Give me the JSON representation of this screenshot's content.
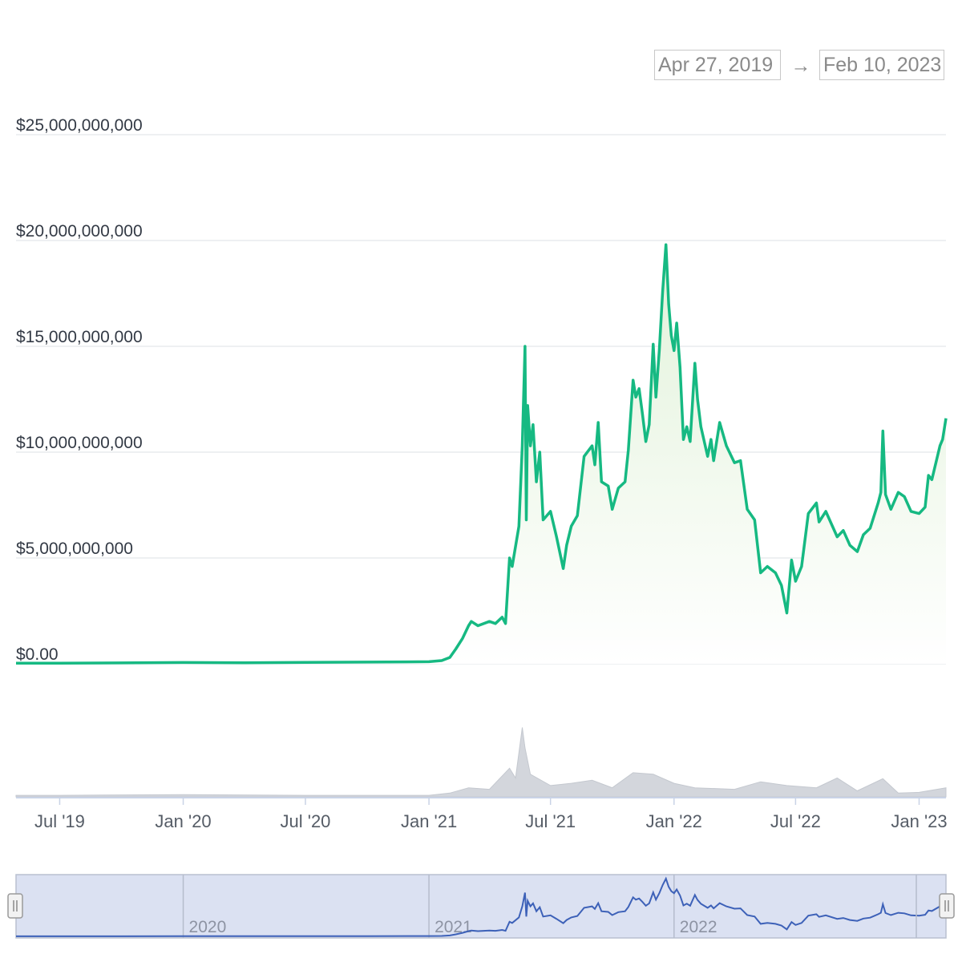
{
  "range": {
    "start": "Apr 27, 2019",
    "separator": "→",
    "end": "Feb 10, 2023"
  },
  "colors": {
    "line": "#16b982",
    "area_top": "#e2f2da",
    "volume": "#d3d6dc",
    "nav_bg": "#dbe1f2",
    "nav_line": "#3d61b8"
  },
  "chart_data": {
    "type": "line",
    "title": "",
    "xlabel": "",
    "ylabel": "",
    "x_range": [
      "2019-04-27",
      "2023-02-10"
    ],
    "ylim": [
      0,
      25000000000
    ],
    "y_ticks": [
      {
        "value": 0,
        "label": "$0.00"
      },
      {
        "value": 5000000000,
        "label": "$5,000,000,000"
      },
      {
        "value": 10000000000,
        "label": "$10,000,000,000"
      },
      {
        "value": 15000000000,
        "label": "$15,000,000,000"
      },
      {
        "value": 20000000000,
        "label": "$20,000,000,000"
      },
      {
        "value": 25000000000,
        "label": "$25,000,000,000"
      }
    ],
    "x_ticks": [
      {
        "date": "2019-07-01",
        "label": "Jul '19"
      },
      {
        "date": "2020-01-01",
        "label": "Jan '20"
      },
      {
        "date": "2020-07-01",
        "label": "Jul '20"
      },
      {
        "date": "2021-01-01",
        "label": "Jan '21"
      },
      {
        "date": "2021-07-01",
        "label": "Jul '21"
      },
      {
        "date": "2022-01-01",
        "label": "Jan '22"
      },
      {
        "date": "2022-07-01",
        "label": "Jul '22"
      },
      {
        "date": "2023-01-01",
        "label": "Jan '23"
      }
    ],
    "grid": true,
    "series": [
      {
        "points": [
          [
            "2019-04-27",
            30000000
          ],
          [
            "2019-07-01",
            30000000
          ],
          [
            "2019-10-01",
            40000000
          ],
          [
            "2020-01-01",
            60000000
          ],
          [
            "2020-04-01",
            50000000
          ],
          [
            "2020-07-01",
            70000000
          ],
          [
            "2020-10-01",
            80000000
          ],
          [
            "2021-01-01",
            100000000
          ],
          [
            "2021-01-20",
            150000000
          ],
          [
            "2021-02-01",
            300000000
          ],
          [
            "2021-02-10",
            700000000
          ],
          [
            "2021-02-20",
            1200000000
          ],
          [
            "2021-03-01",
            1800000000
          ],
          [
            "2021-03-05",
            2000000000
          ],
          [
            "2021-03-15",
            1800000000
          ],
          [
            "2021-04-01",
            2000000000
          ],
          [
            "2021-04-10",
            1900000000
          ],
          [
            "2021-04-20",
            2200000000
          ],
          [
            "2021-04-25",
            1900000000
          ],
          [
            "2021-05-01",
            5000000000
          ],
          [
            "2021-05-05",
            4600000000
          ],
          [
            "2021-05-15",
            6500000000
          ],
          [
            "2021-05-20",
            10300000000
          ],
          [
            "2021-05-24",
            15000000000
          ],
          [
            "2021-05-26",
            6800000000
          ],
          [
            "2021-05-28",
            12200000000
          ],
          [
            "2021-06-01",
            10300000000
          ],
          [
            "2021-06-05",
            11300000000
          ],
          [
            "2021-06-10",
            8600000000
          ],
          [
            "2021-06-15",
            10000000000
          ],
          [
            "2021-06-20",
            6800000000
          ],
          [
            "2021-07-01",
            7200000000
          ],
          [
            "2021-07-10",
            6000000000
          ],
          [
            "2021-07-20",
            4500000000
          ],
          [
            "2021-07-25",
            5600000000
          ],
          [
            "2021-08-01",
            6500000000
          ],
          [
            "2021-08-10",
            7000000000
          ],
          [
            "2021-08-20",
            9800000000
          ],
          [
            "2021-09-01",
            10300000000
          ],
          [
            "2021-09-05",
            9400000000
          ],
          [
            "2021-09-10",
            11400000000
          ],
          [
            "2021-09-15",
            8600000000
          ],
          [
            "2021-09-25",
            8400000000
          ],
          [
            "2021-10-01",
            7300000000
          ],
          [
            "2021-10-10",
            8300000000
          ],
          [
            "2021-10-20",
            8600000000
          ],
          [
            "2021-10-25",
            10100000000
          ],
          [
            "2021-11-01",
            13400000000
          ],
          [
            "2021-11-05",
            12600000000
          ],
          [
            "2021-11-10",
            13000000000
          ],
          [
            "2021-11-15",
            11800000000
          ],
          [
            "2021-11-20",
            10500000000
          ],
          [
            "2021-11-25",
            11300000000
          ],
          [
            "2021-12-01",
            15100000000
          ],
          [
            "2021-12-05",
            12600000000
          ],
          [
            "2021-12-10",
            14800000000
          ],
          [
            "2021-12-15",
            17600000000
          ],
          [
            "2021-12-20",
            19800000000
          ],
          [
            "2021-12-24",
            17000000000
          ],
          [
            "2021-12-28",
            15500000000
          ],
          [
            "2022-01-01",
            14800000000
          ],
          [
            "2022-01-05",
            16100000000
          ],
          [
            "2022-01-10",
            14000000000
          ],
          [
            "2022-01-15",
            10600000000
          ],
          [
            "2022-01-20",
            11200000000
          ],
          [
            "2022-01-25",
            10500000000
          ],
          [
            "2022-02-01",
            14200000000
          ],
          [
            "2022-02-05",
            12500000000
          ],
          [
            "2022-02-10",
            11200000000
          ],
          [
            "2022-02-20",
            9800000000
          ],
          [
            "2022-02-25",
            10600000000
          ],
          [
            "2022-03-01",
            9600000000
          ],
          [
            "2022-03-10",
            11400000000
          ],
          [
            "2022-03-20",
            10300000000
          ],
          [
            "2022-04-01",
            9500000000
          ],
          [
            "2022-04-10",
            9600000000
          ],
          [
            "2022-04-20",
            7300000000
          ],
          [
            "2022-05-01",
            6800000000
          ],
          [
            "2022-05-10",
            4300000000
          ],
          [
            "2022-05-20",
            4600000000
          ],
          [
            "2022-06-01",
            4300000000
          ],
          [
            "2022-06-10",
            3700000000
          ],
          [
            "2022-06-18",
            2400000000
          ],
          [
            "2022-06-25",
            4900000000
          ],
          [
            "2022-07-01",
            3900000000
          ],
          [
            "2022-07-10",
            4600000000
          ],
          [
            "2022-07-20",
            7100000000
          ],
          [
            "2022-08-01",
            7600000000
          ],
          [
            "2022-08-05",
            6700000000
          ],
          [
            "2022-08-15",
            7200000000
          ],
          [
            "2022-09-01",
            6000000000
          ],
          [
            "2022-09-10",
            6300000000
          ],
          [
            "2022-09-20",
            5600000000
          ],
          [
            "2022-10-01",
            5300000000
          ],
          [
            "2022-10-10",
            6100000000
          ],
          [
            "2022-10-20",
            6400000000
          ],
          [
            "2022-11-01",
            7600000000
          ],
          [
            "2022-11-05",
            8100000000
          ],
          [
            "2022-11-08",
            11000000000
          ],
          [
            "2022-11-12",
            8000000000
          ],
          [
            "2022-11-20",
            7300000000
          ],
          [
            "2022-12-01",
            8100000000
          ],
          [
            "2022-12-10",
            7900000000
          ],
          [
            "2022-12-20",
            7200000000
          ],
          [
            "2023-01-01",
            7100000000
          ],
          [
            "2023-01-10",
            7400000000
          ],
          [
            "2023-01-15",
            8900000000
          ],
          [
            "2023-01-20",
            8700000000
          ],
          [
            "2023-02-01",
            10300000000
          ],
          [
            "2023-02-05",
            10600000000
          ],
          [
            "2023-02-10",
            11600000000
          ]
        ]
      }
    ],
    "volume": [
      [
        "2019-04-27",
        0.02
      ],
      [
        "2019-07-01",
        0.02
      ],
      [
        "2020-01-01",
        0.03
      ],
      [
        "2020-07-01",
        0.02
      ],
      [
        "2021-01-01",
        0.02
      ],
      [
        "2021-02-01",
        0.05
      ],
      [
        "2021-03-01",
        0.12
      ],
      [
        "2021-04-01",
        0.1
      ],
      [
        "2021-05-01",
        0.38
      ],
      [
        "2021-05-10",
        0.25
      ],
      [
        "2021-05-20",
        0.92
      ],
      [
        "2021-05-24",
        0.65
      ],
      [
        "2021-06-01",
        0.3
      ],
      [
        "2021-07-01",
        0.15
      ],
      [
        "2021-08-01",
        0.18
      ],
      [
        "2021-09-01",
        0.22
      ],
      [
        "2021-10-01",
        0.12
      ],
      [
        "2021-11-01",
        0.32
      ],
      [
        "2021-12-01",
        0.3
      ],
      [
        "2022-01-01",
        0.18
      ],
      [
        "2022-02-01",
        0.12
      ],
      [
        "2022-04-01",
        0.1
      ],
      [
        "2022-05-10",
        0.2
      ],
      [
        "2022-06-18",
        0.15
      ],
      [
        "2022-08-01",
        0.12
      ],
      [
        "2022-09-01",
        0.25
      ],
      [
        "2022-10-01",
        0.08
      ],
      [
        "2022-11-08",
        0.24
      ],
      [
        "2022-12-01",
        0.05
      ],
      [
        "2023-01-01",
        0.06
      ],
      [
        "2023-02-10",
        0.12
      ]
    ],
    "navigator": {
      "labels": [
        {
          "date": "2020-01-01",
          "label": "2020"
        },
        {
          "date": "2021-01-01",
          "label": "2021"
        },
        {
          "date": "2022-01-01",
          "label": "2022"
        }
      ]
    }
  }
}
